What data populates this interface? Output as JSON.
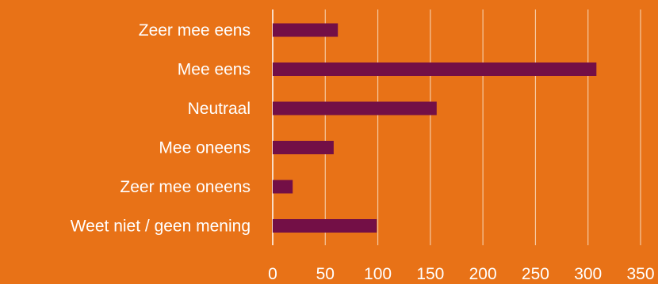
{
  "chart_data": {
    "type": "bar",
    "orientation": "horizontal",
    "categories": [
      "Zeer mee eens",
      "Mee eens",
      "Neutraal",
      "Mee oneens",
      "Zeer mee oneens",
      "Weet niet / geen mening"
    ],
    "values": [
      62,
      308,
      156,
      58,
      19,
      99
    ],
    "xlim": [
      0,
      350
    ],
    "x_ticks": [
      0,
      50,
      100,
      150,
      200,
      250,
      300,
      350
    ],
    "grid": "vertical",
    "title": "",
    "xlabel": "",
    "ylabel": ""
  },
  "colors": {
    "background": "#E87217",
    "bar": "#730F46",
    "gridline": "#F6C9A1",
    "text": "#FFFFFF"
  }
}
